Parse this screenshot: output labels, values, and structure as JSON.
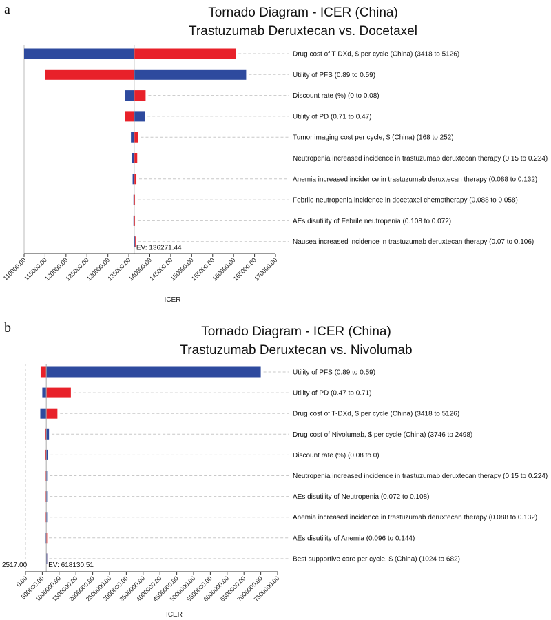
{
  "colors": {
    "low_bar": "#e8212a",
    "high_bar": "#2e4a9e",
    "axis": "#333333",
    "ev_line": "#aaaaaa"
  },
  "chart_data": [
    {
      "type": "tornado",
      "panel_letter": "a",
      "title": "Tornado Diagram - ICER (China)",
      "subtitle": "Trastuzumab Deruxtecan vs. Docetaxel",
      "xlabel": "ICER",
      "ev_label": "EV: 136271.44",
      "ev": 136271.44,
      "xlim": [
        110000,
        170000
      ],
      "ticks": [
        "110000.00",
        "115000.00",
        "120000.00",
        "125000.00",
        "130000.00",
        "135000.00",
        "140000.00",
        "145000.00",
        "150000.00",
        "155000.00",
        "160000.00",
        "165000.00",
        "170000.00"
      ],
      "tick_values": [
        110000,
        115000,
        120000,
        125000,
        130000,
        135000,
        140000,
        145000,
        150000,
        155000,
        160000,
        165000,
        170000
      ],
      "min_label": "",
      "parameters": [
        {
          "label": "Drug cost of T-DXd, $ per cycle (China) (3418 to 5126)",
          "red": 160500,
          "blue": 110000
        },
        {
          "label": "Utility of PFS (0.89 to 0.59)",
          "red": 115000,
          "blue": 163000
        },
        {
          "label": "Discount rate (%) (0 to 0.08)",
          "red": 139000,
          "blue": 134000
        },
        {
          "label": "Utility of PD (0.71 to 0.47)",
          "red": 134000,
          "blue": 138800
        },
        {
          "label": "Tumor imaging cost per cycle, $ (China) (168 to 252)",
          "red": 137200,
          "blue": 135500
        },
        {
          "label": "Neutropenia increased incidence in trastuzumab deruxtecan therapy (0.15 to 0.224)",
          "red": 137000,
          "blue": 135700
        },
        {
          "label": "Anemia increased incidence in trastuzumab deruxtecan therapy (0.088 to 0.132)",
          "red": 136800,
          "blue": 135900
        },
        {
          "label": "Febrile neutropenia incidence in docetaxel chemotherapy (0.088 to 0.058)",
          "red": 136450,
          "blue": 136100
        },
        {
          "label": "AEs disutility of Febrile neutropenia (0.108 to 0.072)",
          "red": 136450,
          "blue": 136100
        },
        {
          "label": "Nausea increased incidence in trastuzumab deruxtecan therapy (0.07 to 0.106)",
          "red": 136600,
          "blue": 136271.44
        }
      ]
    },
    {
      "type": "tornado",
      "panel_letter": "b",
      "title": "Tornado Diagram - ICER (China)",
      "subtitle": "Trastuzumab Deruxtecan vs. Nivolumab",
      "xlabel": "ICER",
      "ev_label": "EV: 618130.51",
      "ev": 618130.51,
      "xlim": [
        0,
        7500000
      ],
      "ticks": [
        "0.00",
        "500000.00",
        "1000000.00",
        "1500000.00",
        "2000000.00",
        "2500000.00",
        "3000000.00",
        "3500000.00",
        "4000000.00",
        "4500000.00",
        "5000000.00",
        "5500000.00",
        "6000000.00",
        "6500000.00",
        "7000000.00",
        "7500000.00"
      ],
      "tick_values": [
        0,
        500000,
        1000000,
        1500000,
        2000000,
        2500000,
        3000000,
        3500000,
        4000000,
        4500000,
        5000000,
        5500000,
        6000000,
        6500000,
        7000000,
        7500000
      ],
      "min_label": "2517.00",
      "parameters": [
        {
          "label": "Utility of PFS (0.89 to 0.59)",
          "red": 450000,
          "blue": 7000000
        },
        {
          "label": "Utility of PD (0.47 to 0.71)",
          "red": 1350000,
          "blue": 500000
        },
        {
          "label": "Drug cost of T-DXd, $ per cycle (China) (3418 to 5126)",
          "red": 950000,
          "blue": 440000
        },
        {
          "label": "Drug cost of Nivolumab, $ per cycle (China) (3746 to 2498)",
          "red": 580000,
          "blue": 700000
        },
        {
          "label": "Discount rate (%) (0.08 to 0)",
          "red": 590000,
          "blue": 660000
        },
        {
          "label": "Neutropenia increased incidence in trastuzumab deruxtecan therapy (0.15 to 0.224)",
          "red": 600000,
          "blue": 640000
        },
        {
          "label": "AEs disutility of Neutropenia (0.072 to 0.108)",
          "red": 600000,
          "blue": 640000
        },
        {
          "label": "Anemia increased incidence in trastuzumab deruxtecan therapy (0.088 to 0.132)",
          "red": 600000,
          "blue": 640000
        },
        {
          "label": "AEs disutility of Anemia (0.096 to 0.144)",
          "red": 618130.51,
          "blue": 600000
        },
        {
          "label": "Best supportive care per cycle, $ (China) (1024 to 682)",
          "red": 625000,
          "blue": 618130.51
        }
      ]
    }
  ]
}
